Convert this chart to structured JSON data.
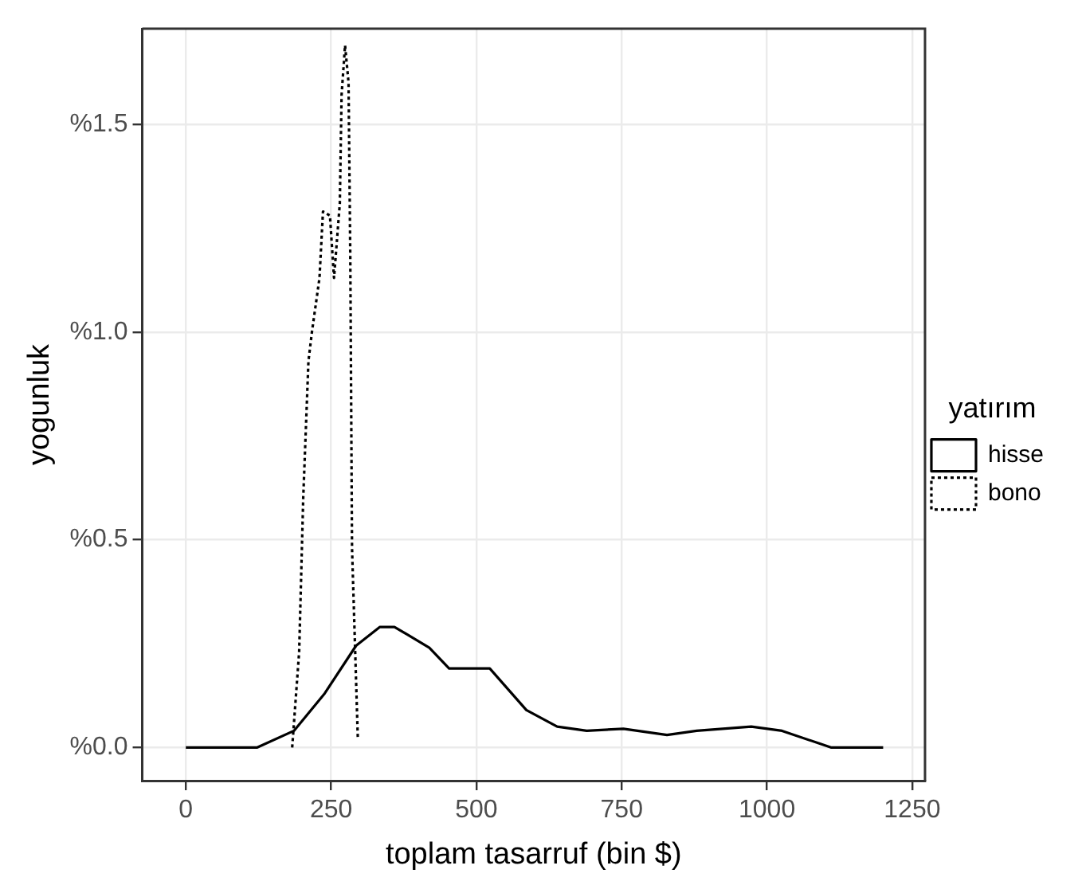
{
  "chart_data": {
    "type": "line",
    "xlabel": "toplam tasarruf (bin $)",
    "ylabel": "yogunluk",
    "legend_title": "yatırım",
    "legend": "right",
    "grid": true,
    "marker": "none",
    "xlim": [
      -75,
      1272
    ],
    "xticks": [
      0,
      250,
      500,
      750,
      1000,
      1250
    ],
    "ylim": [
      -0.08,
      1.73
    ],
    "yticks": [
      {
        "value": 0,
        "label": "%0.0"
      },
      {
        "value": 0.5,
        "label": "%0.5"
      },
      {
        "value": 1,
        "label": "%1.0"
      },
      {
        "value": 1.5,
        "label": "%1.5"
      }
    ],
    "series": [
      {
        "name": "hisse",
        "color": "#000000",
        "line_style": "solid",
        "x": [
          0,
          123,
          186,
          239,
          293,
          334,
          359,
          419,
          453,
          523,
          586,
          639,
          690,
          753,
          828,
          879,
          973,
          1026,
          1089,
          1110,
          1200
        ],
        "values": [
          0,
          0,
          0.04,
          0.13,
          0.245,
          0.29,
          0.29,
          0.24,
          0.19,
          0.19,
          0.09,
          0.05,
          0.04,
          0.045,
          0.03,
          0.04,
          0.05,
          0.04,
          0.01,
          0,
          0
        ]
      },
      {
        "name": "bono",
        "color": "#000000",
        "line_style": "dotted",
        "x": [
          183,
          195,
          202,
          211,
          217,
          230,
          236,
          248,
          255,
          265,
          268,
          274,
          280,
          283,
          286,
          296
        ],
        "values": [
          0,
          0.23,
          0.6,
          0.93,
          1.0,
          1.13,
          1.29,
          1.28,
          1.13,
          1.31,
          1.57,
          1.69,
          1.6,
          1.18,
          0.48,
          0.02
        ]
      }
    ]
  }
}
